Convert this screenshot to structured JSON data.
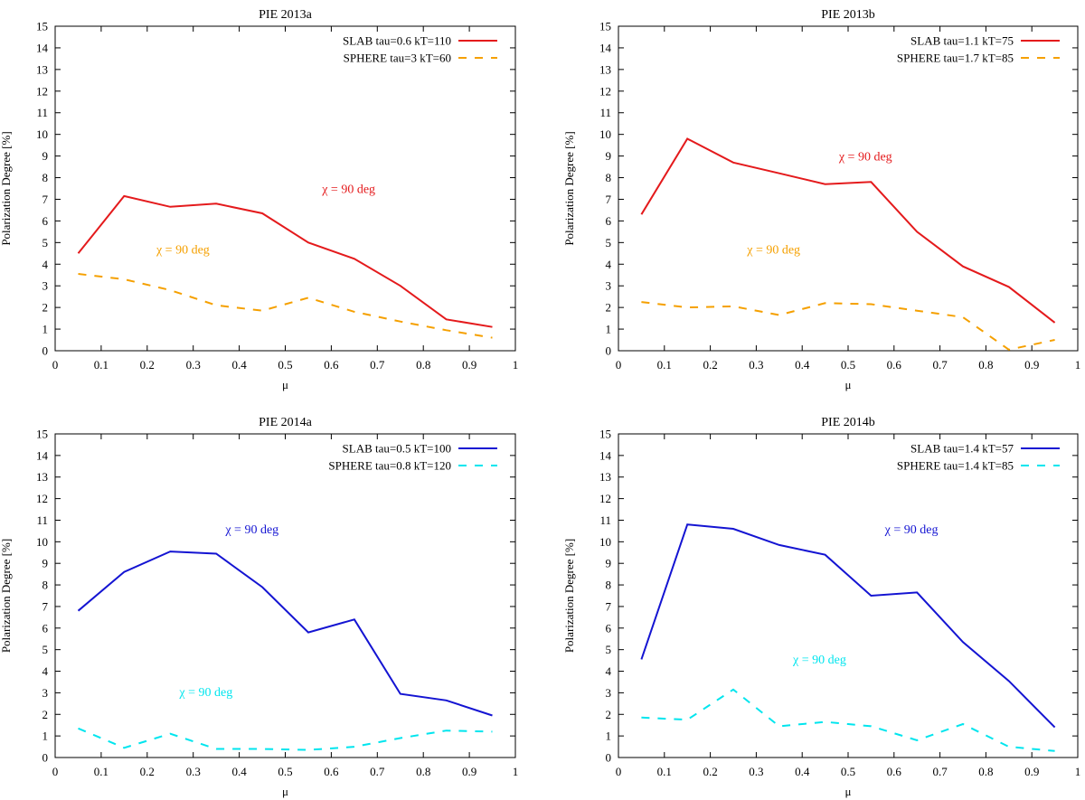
{
  "chart_data": [
    {
      "type": "line",
      "title": "PIE 2013a",
      "xlabel": "μ",
      "ylabel": "Polarization Degree [%]",
      "xlim": [
        0,
        1
      ],
      "ylim": [
        0,
        15
      ],
      "xticks": [
        "0",
        "0.1",
        "0.2",
        "0.3",
        "0.4",
        "0.5",
        "0.6",
        "0.7",
        "0.8",
        "0.9",
        "1"
      ],
      "yticks": [
        "0",
        "1",
        "2",
        "3",
        "4",
        "5",
        "6",
        "7",
        "8",
        "9",
        "10",
        "11",
        "12",
        "13",
        "14",
        "15"
      ],
      "legend_position": "top-right",
      "series": [
        {
          "name": "SLAB tau=0.6 kT=110",
          "color": "#e41a1c",
          "dash": "solid",
          "x": [
            0.05,
            0.15,
            0.25,
            0.35,
            0.45,
            0.55,
            0.65,
            0.75,
            0.85,
            0.95
          ],
          "y": [
            4.5,
            7.15,
            6.65,
            6.8,
            6.35,
            5.0,
            4.25,
            3.0,
            1.45,
            1.1
          ]
        },
        {
          "name": "SPHERE tau=3 kT=60",
          "color": "#f5a000",
          "dash": "dashed",
          "x": [
            0.05,
            0.15,
            0.25,
            0.35,
            0.45,
            0.55,
            0.65,
            0.75,
            0.85,
            0.95
          ],
          "y": [
            3.55,
            3.3,
            2.8,
            2.1,
            1.85,
            2.45,
            1.8,
            1.35,
            0.95,
            0.6
          ]
        }
      ],
      "annotations": [
        {
          "text": "χ = 90 deg",
          "x": 0.58,
          "y": 7.3,
          "color": "#e41a1c"
        },
        {
          "text": "χ = 90 deg",
          "x": 0.22,
          "y": 4.5,
          "color": "#f5a000"
        }
      ]
    },
    {
      "type": "line",
      "title": "PIE 2013b",
      "xlabel": "μ",
      "ylabel": "Polarization Degree [%]",
      "xlim": [
        0,
        1
      ],
      "ylim": [
        0,
        15
      ],
      "xticks": [
        "0",
        "0.1",
        "0.2",
        "0.3",
        "0.4",
        "0.5",
        "0.6",
        "0.7",
        "0.8",
        "0.9",
        "1"
      ],
      "yticks": [
        "0",
        "1",
        "2",
        "3",
        "4",
        "5",
        "6",
        "7",
        "8",
        "9",
        "10",
        "11",
        "12",
        "13",
        "14",
        "15"
      ],
      "legend_position": "top-right",
      "series": [
        {
          "name": "SLAB tau=1.1 kT=75",
          "color": "#e41a1c",
          "dash": "solid",
          "x": [
            0.05,
            0.15,
            0.25,
            0.35,
            0.45,
            0.55,
            0.65,
            0.75,
            0.85,
            0.95
          ],
          "y": [
            6.3,
            9.8,
            8.7,
            8.2,
            7.7,
            7.8,
            5.5,
            3.9,
            2.95,
            1.3
          ]
        },
        {
          "name": "SPHERE tau=1.7 kT=85",
          "color": "#f5a000",
          "dash": "dashed",
          "x": [
            0.05,
            0.15,
            0.25,
            0.35,
            0.45,
            0.55,
            0.65,
            0.75,
            0.85,
            0.95
          ],
          "y": [
            2.25,
            2.0,
            2.05,
            1.65,
            2.2,
            2.15,
            1.85,
            1.55,
            0.05,
            0.5
          ]
        }
      ],
      "annotations": [
        {
          "text": "χ = 90 deg",
          "x": 0.48,
          "y": 8.8,
          "color": "#e41a1c"
        },
        {
          "text": "χ = 90 deg",
          "x": 0.28,
          "y": 4.5,
          "color": "#f5a000"
        }
      ]
    },
    {
      "type": "line",
      "title": "PIE 2014a",
      "xlabel": "μ",
      "ylabel": "Polarization Degree [%]",
      "xlim": [
        0,
        1
      ],
      "ylim": [
        0,
        15
      ],
      "xticks": [
        "0",
        "0.1",
        "0.2",
        "0.3",
        "0.4",
        "0.5",
        "0.6",
        "0.7",
        "0.8",
        "0.9",
        "1"
      ],
      "yticks": [
        "0",
        "1",
        "2",
        "3",
        "4",
        "5",
        "6",
        "7",
        "8",
        "9",
        "10",
        "11",
        "12",
        "13",
        "14",
        "15"
      ],
      "legend_position": "top-right",
      "series": [
        {
          "name": "SLAB tau=0.5 kT=100",
          "color": "#1414d2",
          "dash": "solid",
          "x": [
            0.05,
            0.15,
            0.25,
            0.35,
            0.45,
            0.55,
            0.65,
            0.75,
            0.85,
            0.95
          ],
          "y": [
            6.8,
            8.6,
            9.55,
            9.45,
            7.9,
            5.8,
            6.4,
            2.95,
            2.65,
            1.95
          ]
        },
        {
          "name": "SPHERE tau=0.8 kT=120",
          "color": "#00e5ee",
          "dash": "dashed",
          "x": [
            0.05,
            0.15,
            0.25,
            0.35,
            0.45,
            0.55,
            0.65,
            0.75,
            0.85,
            0.95
          ],
          "y": [
            1.35,
            0.45,
            1.1,
            0.4,
            0.4,
            0.35,
            0.5,
            0.9,
            1.25,
            1.2
          ]
        }
      ],
      "annotations": [
        {
          "text": "χ = 90 deg",
          "x": 0.37,
          "y": 10.4,
          "color": "#1414d2"
        },
        {
          "text": "χ = 90 deg",
          "x": 0.27,
          "y": 2.85,
          "color": "#00e5ee"
        }
      ]
    },
    {
      "type": "line",
      "title": "PIE 2014b",
      "xlabel": "μ",
      "ylabel": "Polarization Degree [%]",
      "xlim": [
        0,
        1
      ],
      "ylim": [
        0,
        15
      ],
      "xticks": [
        "0",
        "0.1",
        "0.2",
        "0.3",
        "0.4",
        "0.5",
        "0.6",
        "0.7",
        "0.8",
        "0.9",
        "1"
      ],
      "yticks": [
        "0",
        "1",
        "2",
        "3",
        "4",
        "5",
        "6",
        "7",
        "8",
        "9",
        "10",
        "11",
        "12",
        "13",
        "14",
        "15"
      ],
      "legend_position": "top-right",
      "series": [
        {
          "name": "SLAB tau=1.4 kT=57",
          "color": "#1414d2",
          "dash": "solid",
          "x": [
            0.05,
            0.15,
            0.25,
            0.35,
            0.45,
            0.55,
            0.65,
            0.75,
            0.85,
            0.95
          ],
          "y": [
            4.55,
            10.8,
            10.6,
            9.85,
            9.4,
            7.5,
            7.65,
            5.35,
            3.55,
            1.4
          ]
        },
        {
          "name": "SPHERE tau=1.4 kT=85",
          "color": "#00e5ee",
          "dash": "dashed",
          "x": [
            0.05,
            0.15,
            0.25,
            0.35,
            0.45,
            0.55,
            0.65,
            0.75,
            0.85,
            0.95
          ],
          "y": [
            1.85,
            1.75,
            3.15,
            1.45,
            1.65,
            1.45,
            0.8,
            1.55,
            0.5,
            0.3
          ]
        }
      ],
      "annotations": [
        {
          "text": "χ = 90 deg",
          "x": 0.58,
          "y": 10.4,
          "color": "#1414d2"
        },
        {
          "text": "χ = 90 deg",
          "x": 0.38,
          "y": 4.35,
          "color": "#00e5ee"
        }
      ]
    }
  ]
}
